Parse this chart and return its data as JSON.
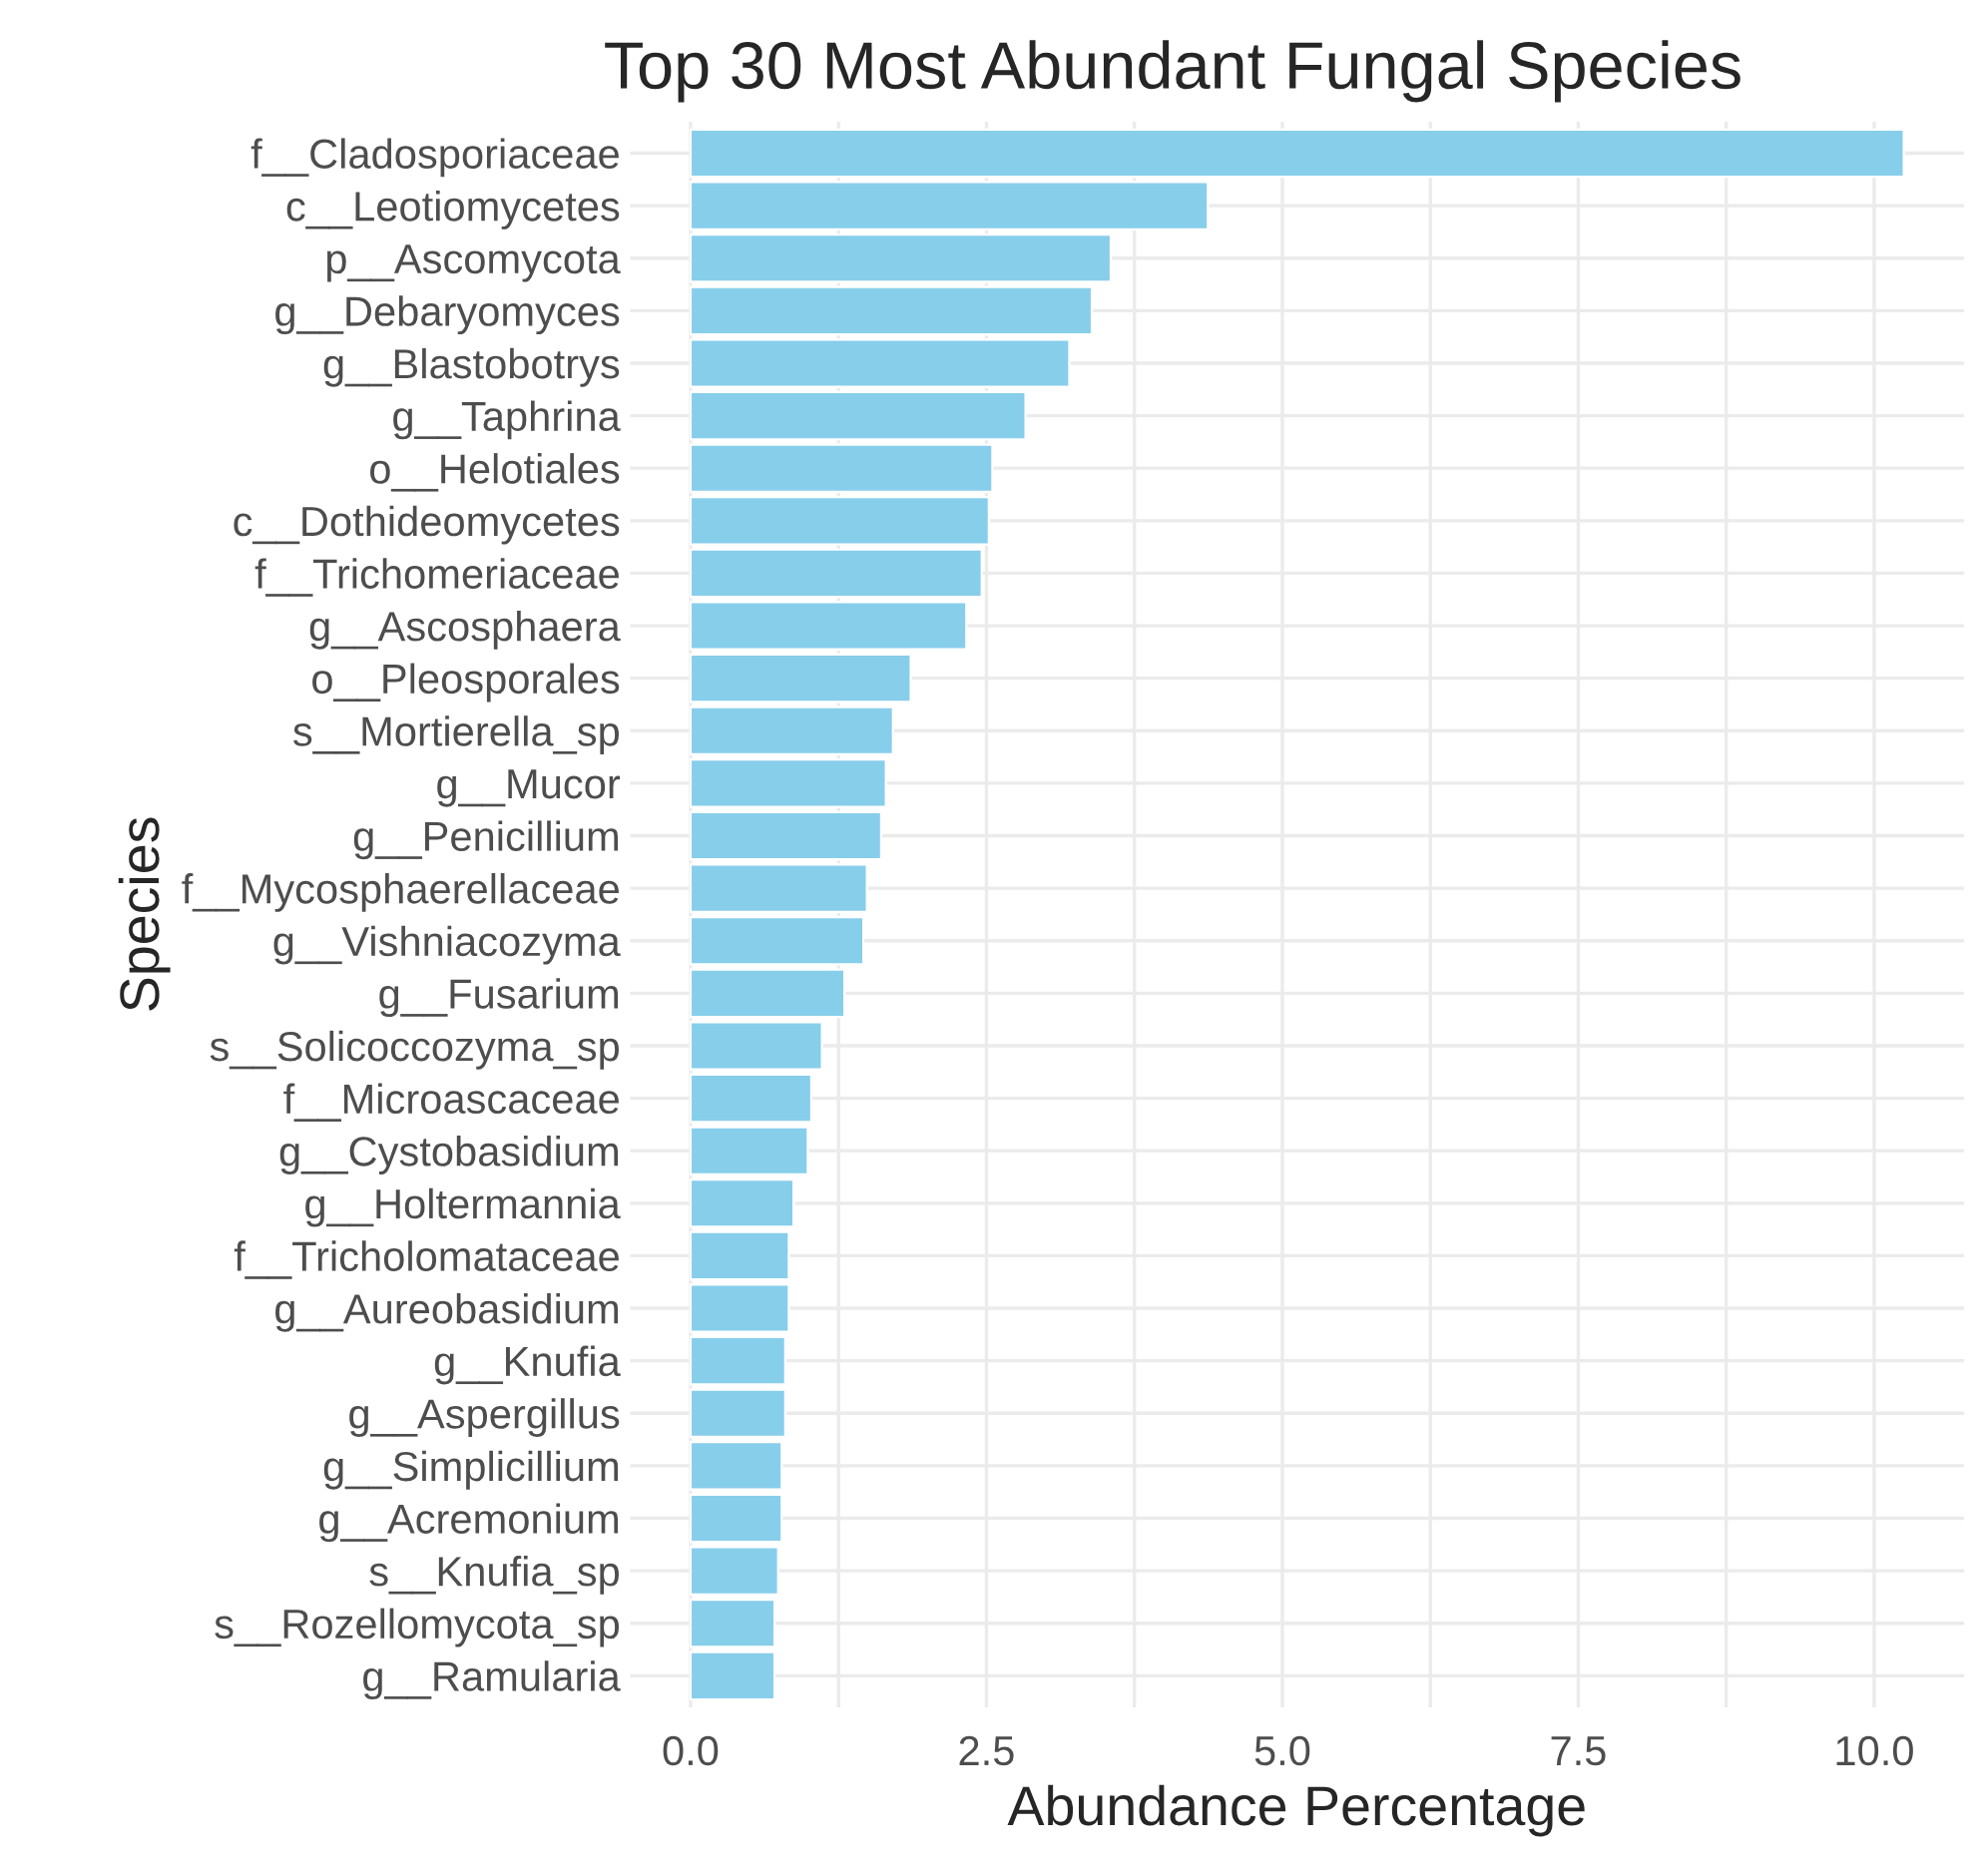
{
  "chart_data": {
    "type": "bar",
    "orientation": "horizontal",
    "title": "Top 30 Most Abundant Fungal Species",
    "xlabel": "Abundance Percentage",
    "ylabel": "Species",
    "categories": [
      "f__Cladosporiaceae",
      "c__Leotiomycetes",
      "p__Ascomycota",
      "g__Debaryomyces",
      "g__Blastobotrys",
      "g__Taphrina",
      "o__Helotiales",
      "c__Dothideomycetes",
      "f__Trichomeriaceae",
      "g__Ascosphaera",
      "o__Pleosporales",
      "s__Mortierella_sp",
      "g__Mucor",
      "g__Penicillium",
      "f__Mycosphaerellaceae",
      "g__Vishniacozyma",
      "g__Fusarium",
      "s__Solicoccozyma_sp",
      "f__Microascaceae",
      "g__Cystobasidium",
      "g__Holtermannia",
      "f__Tricholomataceae",
      "g__Aureobasidium",
      "g__Knufia",
      "g__Aspergillus",
      "g__Simplicillium",
      "g__Acremonium",
      "s__Knufia_sp",
      "s__Rozellomycota_sp",
      "g__Ramularia"
    ],
    "values": [
      10.25,
      4.37,
      3.55,
      3.39,
      3.2,
      2.83,
      2.55,
      2.52,
      2.46,
      2.33,
      1.86,
      1.71,
      1.65,
      1.61,
      1.49,
      1.46,
      1.3,
      1.11,
      1.02,
      0.99,
      0.87,
      0.83,
      0.83,
      0.8,
      0.8,
      0.77,
      0.77,
      0.74,
      0.71,
      0.71
    ],
    "color": "#87ceeb",
    "xlim": [
      -0.51,
      10.76
    ],
    "xticks": [
      {
        "value": 0.0,
        "label": "0.0"
      },
      {
        "value": 1.25,
        "label": null
      },
      {
        "value": 2.5,
        "label": "2.5"
      },
      {
        "value": 3.75,
        "label": null
      },
      {
        "value": 5.0,
        "label": "5.0"
      },
      {
        "value": 6.25,
        "label": null
      },
      {
        "value": 7.5,
        "label": "7.5"
      },
      {
        "value": 8.75,
        "label": null
      },
      {
        "value": 10.0,
        "label": "10.0"
      }
    ],
    "grid": true
  }
}
